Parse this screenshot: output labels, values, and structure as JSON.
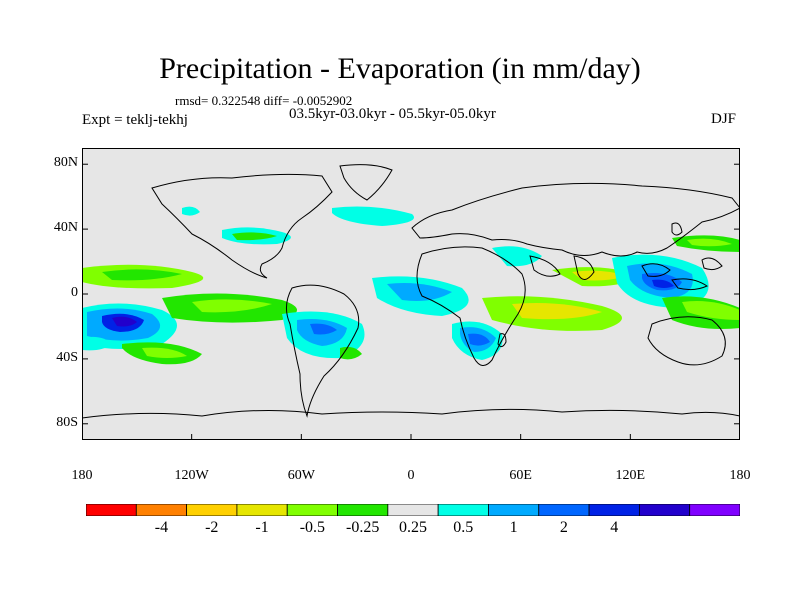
{
  "title": "Precipitation - Evaporation (in mm/day)",
  "stats": "rmsd= 0.322548 diff= -0.0052902",
  "period": "03.5kyr-03.0kyr - 05.5kyr-05.0kyr",
  "expt": "Expt = teklj-tekhj",
  "season": "DJF",
  "map": {
    "land_background": "#e6e6e6",
    "coast_color": "#000000",
    "y_ticks": [
      {
        "label": "80N",
        "lat": 80
      },
      {
        "label": "40N",
        "lat": 40
      },
      {
        "label": "0",
        "lat": 0
      },
      {
        "label": "40S",
        "lat": -40
      },
      {
        "label": "80S",
        "lat": -80
      }
    ],
    "x_ticks": [
      {
        "label": "180",
        "lon": -180
      },
      {
        "label": "120W",
        "lon": -120
      },
      {
        "label": "60W",
        "lon": -60
      },
      {
        "label": "0",
        "lon": 0
      },
      {
        "label": "60E",
        "lon": 60
      },
      {
        "label": "120E",
        "lon": 120
      },
      {
        "label": "180",
        "lon": 180
      }
    ]
  },
  "colorbar": {
    "colors": [
      "#ff0000",
      "#ff8000",
      "#ffd000",
      "#e6e600",
      "#80ff00",
      "#22e600",
      "#e6e6e6",
      "#00ffe6",
      "#00aaff",
      "#0066ff",
      "#0022e6",
      "#2200cc",
      "#8000ff"
    ],
    "labels": [
      "-4",
      "-2",
      "-1",
      "-0.5",
      "-0.25",
      "0.25",
      "0.5",
      "1",
      "2",
      "4"
    ],
    "label_boundary_index": [
      2,
      4,
      5,
      6,
      7,
      7,
      8,
      9,
      10,
      11
    ]
  }
}
